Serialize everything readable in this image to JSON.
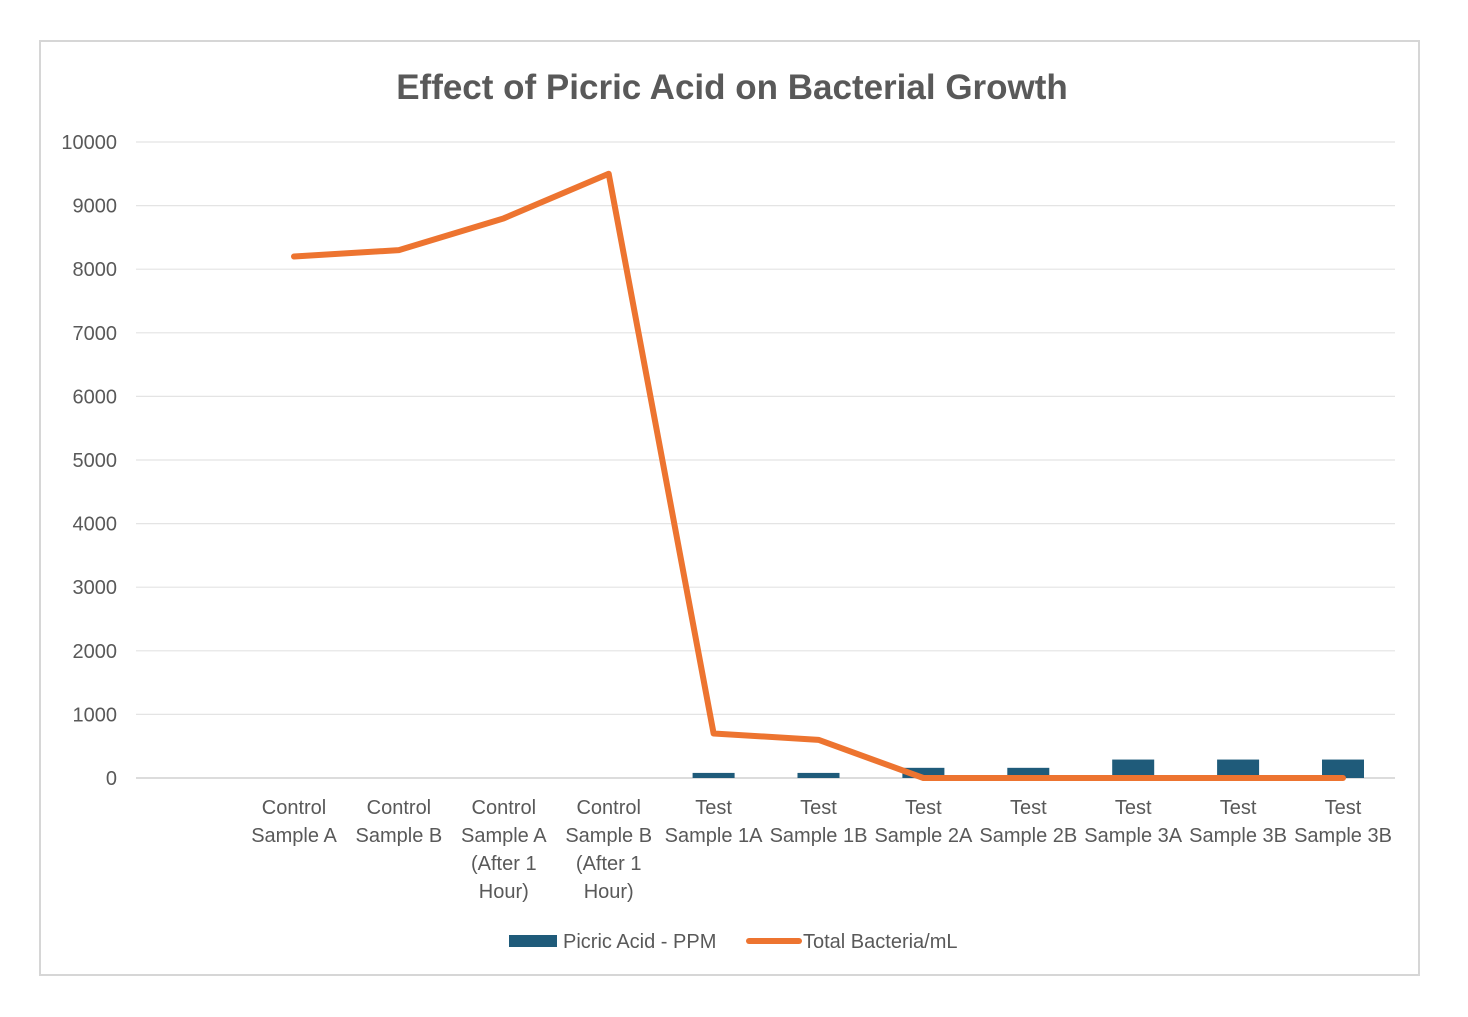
{
  "chart_data": {
    "type": "bar+line",
    "title": "Effect of Picric Acid on Bacterial Growth",
    "xlabel": "",
    "ylabel": "",
    "ylim": [
      0,
      10000
    ],
    "yticks": [
      0,
      1000,
      2000,
      3000,
      4000,
      5000,
      6000,
      7000,
      8000,
      9000,
      10000
    ],
    "grid": true,
    "legend_position": "bottom",
    "categories": [
      [
        "Control",
        "Sample A"
      ],
      [
        "Control",
        "Sample B"
      ],
      [
        "Control",
        "Sample A",
        "(After 1",
        "Hour)"
      ],
      [
        "Control",
        "Sample B",
        "(After 1",
        "Hour)"
      ],
      [
        "Test",
        "Sample 1A"
      ],
      [
        "Test",
        "Sample 1B"
      ],
      [
        "Test",
        "Sample 2A"
      ],
      [
        "Test",
        "Sample 2B"
      ],
      [
        "Test",
        "Sample 3A"
      ],
      [
        "Test",
        "Sample 3B"
      ],
      [
        "Test",
        "Sample 3B"
      ]
    ],
    "series": [
      {
        "name": "Picric Acid - PPM",
        "type": "bar",
        "color": "#1f5b7a",
        "values": [
          0,
          0,
          0,
          0,
          80,
          80,
          160,
          160,
          290,
          290,
          290
        ]
      },
      {
        "name": "Total Bacteria/mL",
        "type": "line",
        "color": "#ed7430",
        "values": [
          8200,
          8300,
          8800,
          9500,
          700,
          600,
          0,
          0,
          0,
          0,
          0
        ]
      }
    ]
  }
}
